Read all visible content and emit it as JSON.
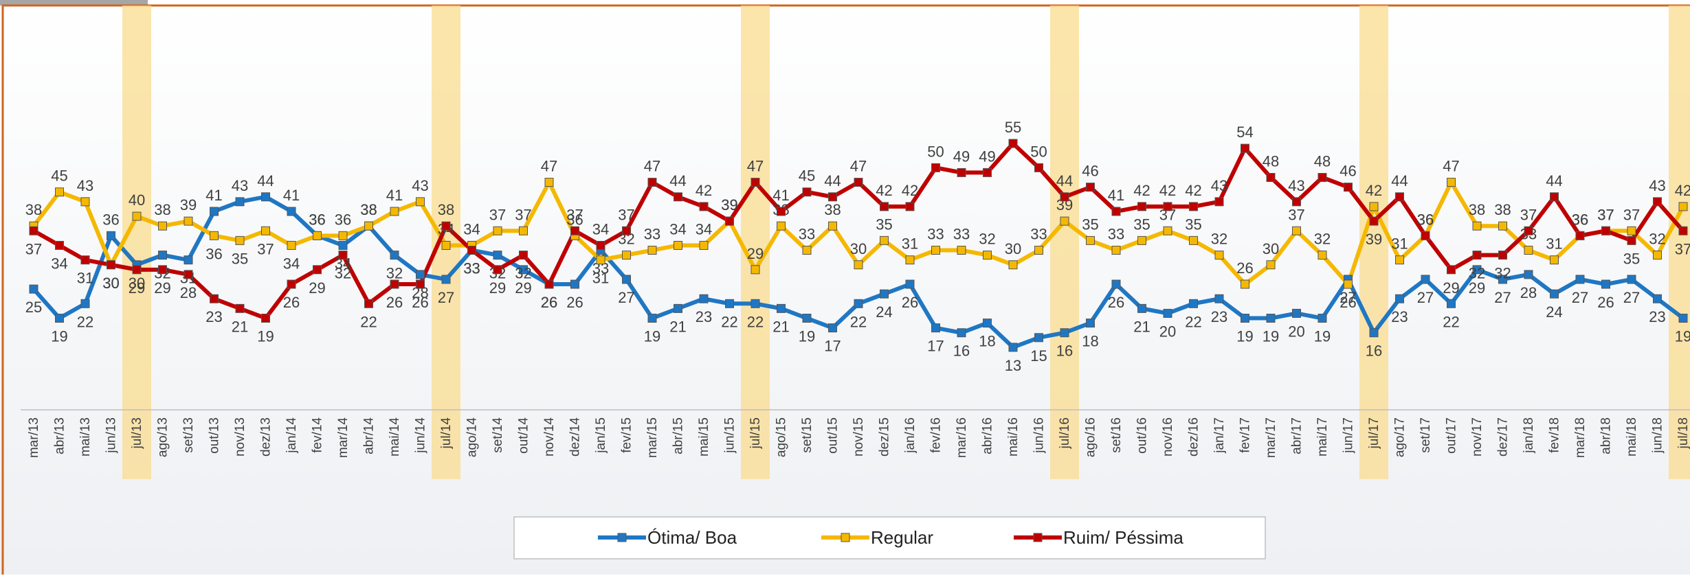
{
  "chart_data": {
    "type": "line",
    "categories": [
      "mar/13",
      "abr/13",
      "mai/13",
      "jun/13",
      "jul/13",
      "ago/13",
      "set/13",
      "out/13",
      "nov/13",
      "dez/13",
      "jan/14",
      "fev/14",
      "mar/14",
      "abr/14",
      "mai/14",
      "jun/14",
      "jul/14",
      "ago/14",
      "set/14",
      "out/14",
      "nov/14",
      "dez/14",
      "jan/15",
      "fev/15",
      "mar/15",
      "abr/15",
      "mai/15",
      "jun/15",
      "jul/15",
      "ago/15",
      "set/15",
      "out/15",
      "nov/15",
      "dez/15",
      "jan/16",
      "fev/16",
      "mar/16",
      "abr/16",
      "mai/16",
      "jun/16",
      "jul/16",
      "ago/16",
      "set/16",
      "out/16",
      "nov/16",
      "dez/16",
      "jan/17",
      "fev/17",
      "mar/17",
      "abr/17",
      "mai/17",
      "jun/17",
      "jul/17",
      "ago/17",
      "set/17",
      "out/17",
      "nov/17",
      "dez/17",
      "jan/18",
      "fev/18",
      "mar/18",
      "abr/18",
      "mai/18",
      "jun/18",
      "jul/18"
    ],
    "series": [
      {
        "name": "Ótima/ Boa",
        "color": "#1f77c4",
        "values": [
          25,
          19,
          22,
          36,
          30,
          32,
          31,
          41,
          43,
          44,
          41,
          36,
          34,
          38,
          32,
          28,
          27,
          33,
          32,
          29,
          26,
          26,
          33,
          27,
          19,
          21,
          23,
          22,
          22,
          21,
          19,
          17,
          22,
          24,
          26,
          17,
          16,
          18,
          13,
          15,
          16,
          18,
          26,
          21,
          20,
          22,
          23,
          19,
          19,
          20,
          19,
          27,
          16,
          23,
          27,
          22,
          29,
          27,
          28,
          24,
          27,
          26,
          27,
          23,
          19
        ]
      },
      {
        "name": "Regular",
        "color": "#f5b800",
        "values": [
          38,
          45,
          43,
          30,
          40,
          38,
          39,
          36,
          35,
          37,
          34,
          36,
          36,
          38,
          41,
          43,
          34,
          34,
          37,
          37,
          47,
          36,
          31,
          32,
          33,
          34,
          34,
          39,
          29,
          38,
          33,
          38,
          30,
          35,
          31,
          33,
          33,
          32,
          30,
          33,
          39,
          35,
          33,
          35,
          37,
          35,
          32,
          26,
          30,
          37,
          32,
          26,
          42,
          31,
          36,
          47,
          38,
          38,
          33,
          31,
          36,
          37,
          37,
          32,
          42
        ]
      },
      {
        "name": "Ruim/ Péssima",
        "color": "#c00000",
        "values": [
          37,
          34,
          31,
          30,
          29,
          29,
          28,
          23,
          21,
          19,
          26,
          29,
          32,
          22,
          26,
          26,
          38,
          33,
          29,
          32,
          26,
          37,
          34,
          37,
          47,
          44,
          42,
          39,
          47,
          41,
          45,
          44,
          47,
          42,
          42,
          50,
          49,
          49,
          55,
          50,
          44,
          46,
          41,
          42,
          42,
          42,
          43,
          54,
          48,
          43,
          48,
          46,
          39,
          44,
          36,
          29,
          32,
          32,
          37,
          44,
          36,
          37,
          35,
          43,
          37
        ]
      }
    ],
    "legend": "bottom"
  }
}
